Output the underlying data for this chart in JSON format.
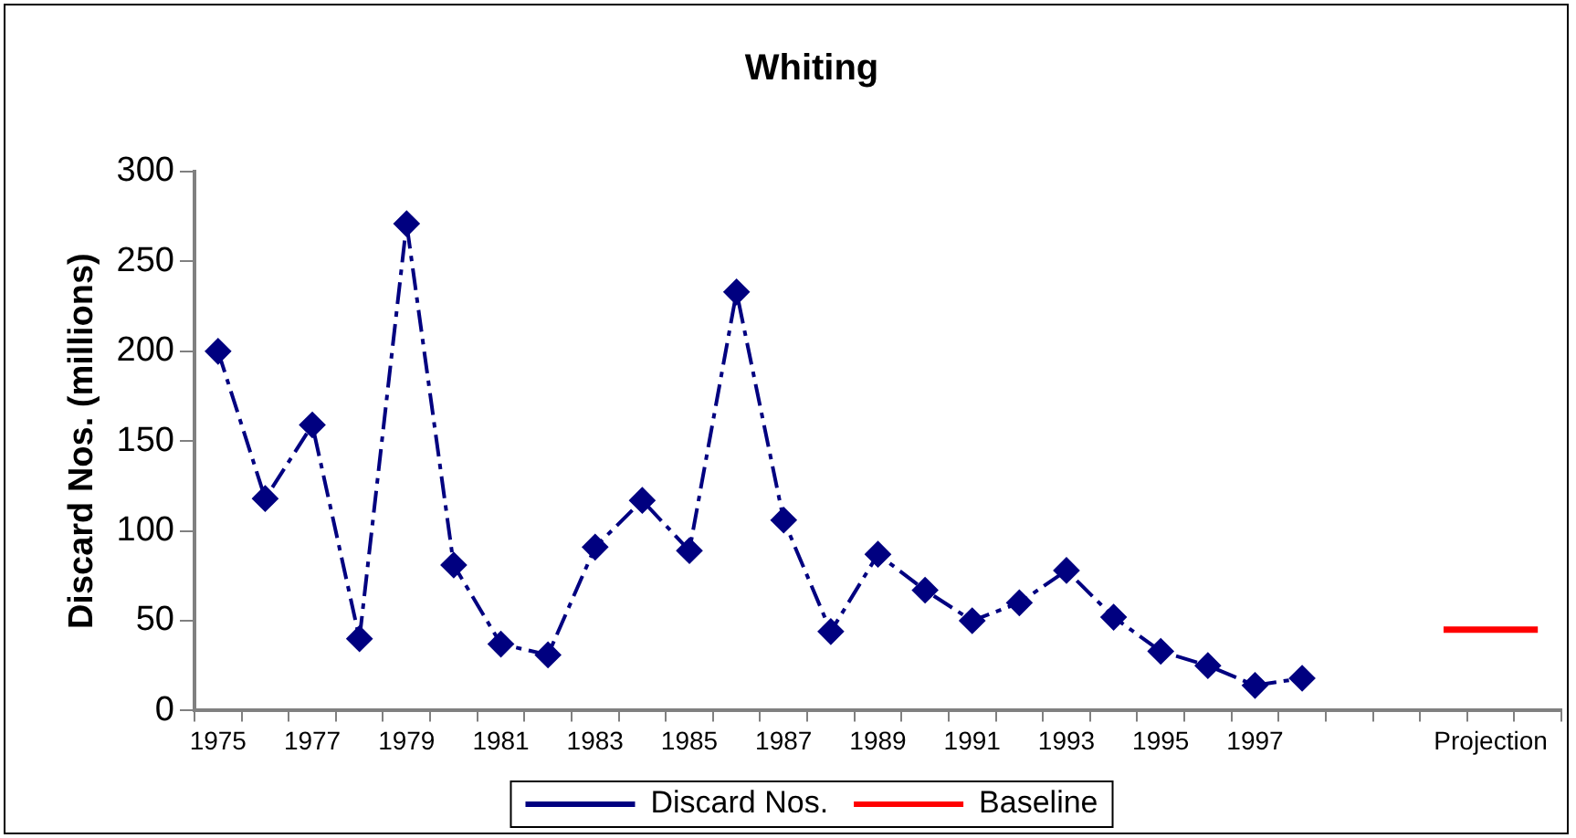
{
  "chart_data": {
    "type": "line",
    "title": "Whiting",
    "ylabel": "Discard Nos. (millions)",
    "categories": [
      "1975",
      null,
      "1977",
      null,
      "1979",
      null,
      "1981",
      null,
      "1983",
      null,
      "1985",
      null,
      "1987",
      null,
      "1989",
      null,
      "1991",
      null,
      "1993",
      null,
      "1995",
      null,
      "1997",
      null,
      null,
      null,
      null,
      "Projection",
      null
    ],
    "series": [
      {
        "name": "Discard Nos.",
        "color": "#000080",
        "marker": "diamond",
        "line_style": "dashed",
        "values": [
          200,
          118,
          159,
          40,
          271,
          81,
          37,
          31,
          91,
          117,
          89,
          233,
          106,
          44,
          87,
          67,
          50,
          60,
          78,
          52,
          33,
          25,
          14,
          18,
          null,
          null,
          null,
          null,
          null
        ]
      },
      {
        "name": "Baseline",
        "color": "#ff0000",
        "marker": "none",
        "line_style": "solid",
        "values": [
          null,
          null,
          null,
          null,
          null,
          null,
          null,
          null,
          null,
          null,
          null,
          null,
          null,
          null,
          null,
          null,
          null,
          null,
          null,
          null,
          null,
          null,
          null,
          null,
          null,
          null,
          45,
          45,
          45
        ]
      }
    ],
    "ylim": [
      0,
      300
    ],
    "yticks": [
      0,
      50,
      100,
      150,
      200,
      250,
      300
    ],
    "grid": false,
    "legend": "bottom"
  }
}
